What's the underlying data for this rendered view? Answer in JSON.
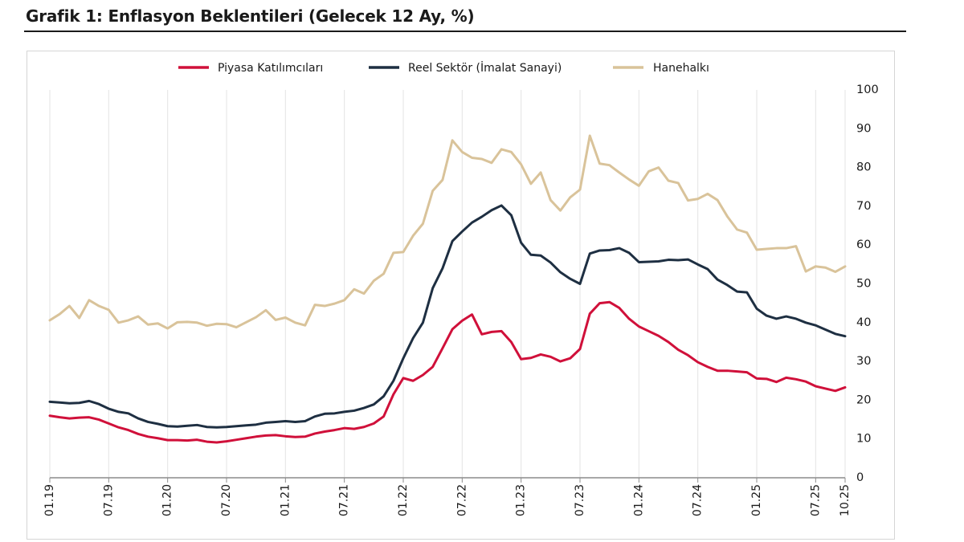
{
  "page": {
    "title": "Grafik 1: Enflasyon Beklentileri (Gelecek 12 Ay, %)"
  },
  "chart_data": {
    "type": "line",
    "title": "Grafik 1: Enflasyon Beklentileri (Gelecek 12 Ay, %)",
    "xlabel": "",
    "ylabel": "",
    "ylim": [
      0,
      100
    ],
    "y_ticks": [
      "0",
      "10",
      "20",
      "30",
      "40",
      "50",
      "60",
      "70",
      "80",
      "90",
      "100"
    ],
    "grid": "vertical",
    "legend_position": "top",
    "x_tick_labels": [
      "01.19",
      "07.19",
      "01.20",
      "07.20",
      "01.21",
      "07.21",
      "01.22",
      "07.22",
      "01.23",
      "07.23",
      "01.24",
      "07.24",
      "01.25",
      "07.25",
      "10.25"
    ],
    "x_tick_months": [
      0,
      6,
      12,
      18,
      24,
      30,
      36,
      42,
      48,
      54,
      60,
      66,
      72,
      78,
      81
    ],
    "x_start": "01.19",
    "series": [
      {
        "name": "Piyasa Katılımcıları",
        "color": "#d0103a",
        "values": [
          16.0,
          15.6,
          15.3,
          15.5,
          15.6,
          15.0,
          14.0,
          13.0,
          12.3,
          11.3,
          10.6,
          10.2,
          9.7,
          9.7,
          9.6,
          9.8,
          9.3,
          9.1,
          9.4,
          9.8,
          10.2,
          10.6,
          10.9,
          11.0,
          10.7,
          10.5,
          10.6,
          11.4,
          11.9,
          12.3,
          12.8,
          12.6,
          13.1,
          14.0,
          15.8,
          21.5,
          25.7,
          25.0,
          26.5,
          28.6,
          33.4,
          38.3,
          40.5,
          42.1,
          37.0,
          37.6,
          37.8,
          35.0,
          30.6,
          30.9,
          31.8,
          31.2,
          30.0,
          30.8,
          33.2,
          42.3,
          45.0,
          45.3,
          43.8,
          41.0,
          39.0,
          37.8,
          36.6,
          35.0,
          33.0,
          31.6,
          29.8,
          28.6,
          27.6,
          27.6,
          27.4,
          27.2,
          25.6,
          25.5,
          24.7,
          25.8,
          25.4,
          24.8,
          23.6,
          23.0,
          22.4,
          23.3
        ]
      },
      {
        "name": "Reel Sektör (İmalat Sanayi)",
        "color": "#1e2f42",
        "values": [
          19.6,
          19.4,
          19.2,
          19.3,
          19.8,
          19.0,
          17.8,
          17.0,
          16.6,
          15.3,
          14.4,
          13.9,
          13.3,
          13.2,
          13.4,
          13.6,
          13.1,
          13.0,
          13.1,
          13.3,
          13.5,
          13.7,
          14.2,
          14.4,
          14.6,
          14.4,
          14.6,
          15.8,
          16.5,
          16.6,
          17.0,
          17.3,
          18.0,
          18.9,
          21.0,
          25.0,
          30.8,
          36.0,
          40.0,
          48.9,
          54.0,
          61.0,
          63.5,
          65.8,
          67.3,
          69.0,
          70.2,
          67.7,
          60.6,
          57.5,
          57.3,
          55.5,
          53.0,
          51.3,
          50.0,
          57.8,
          58.6,
          58.7,
          59.2,
          58.0,
          55.6,
          55.7,
          55.8,
          56.2,
          56.1,
          56.3,
          55.0,
          53.8,
          51.1,
          49.7,
          48.0,
          47.8,
          43.6,
          41.8,
          41.0,
          41.6,
          41.0,
          40.0,
          39.3,
          38.2,
          37.1,
          36.5
        ]
      },
      {
        "name": "Hanehalkı",
        "color": "#d9c39a",
        "values": [
          40.6,
          42.2,
          44.3,
          41.2,
          45.8,
          44.3,
          43.3,
          40.0,
          40.6,
          41.6,
          39.5,
          39.8,
          38.5,
          40.1,
          40.2,
          40.0,
          39.2,
          39.7,
          39.6,
          38.8,
          40.1,
          41.4,
          43.2,
          40.7,
          41.3,
          40.0,
          39.3,
          44.6,
          44.3,
          44.9,
          45.8,
          48.6,
          47.5,
          50.8,
          52.6,
          58.0,
          58.2,
          62.4,
          65.5,
          74.0,
          76.8,
          87.0,
          84.0,
          82.5,
          82.2,
          81.2,
          84.7,
          84.0,
          80.8,
          75.8,
          78.7,
          71.6,
          68.9,
          72.3,
          74.3,
          88.2,
          81.0,
          80.6,
          78.7,
          76.9,
          75.3,
          79.0,
          80.0,
          76.6,
          76.0,
          71.5,
          71.9,
          73.2,
          71.6,
          67.4,
          64.0,
          63.2,
          58.8,
          59.0,
          59.2,
          59.2,
          59.7,
          53.2,
          54.5,
          54.2,
          53.1,
          54.5
        ]
      }
    ]
  }
}
